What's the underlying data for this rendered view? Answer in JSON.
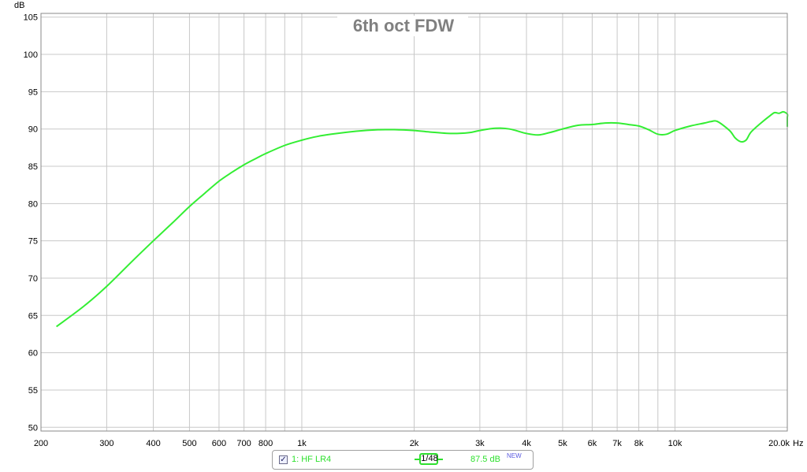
{
  "chart_data": {
    "type": "line",
    "title": "6th oct FDW",
    "y_unit": "dB",
    "x_unit": "Hz",
    "x_scale": "log",
    "xlim": [
      200,
      20000
    ],
    "ylim": [
      49.5,
      105.5
    ],
    "grid": true,
    "y_ticks": [
      50,
      55,
      60,
      65,
      70,
      75,
      80,
      85,
      90,
      95,
      100,
      105
    ],
    "x_ticks": [
      {
        "value": 200,
        "label": "200"
      },
      {
        "value": 300,
        "label": "300"
      },
      {
        "value": 400,
        "label": "400"
      },
      {
        "value": 500,
        "label": "500"
      },
      {
        "value": 600,
        "label": "600"
      },
      {
        "value": 700,
        "label": "700"
      },
      {
        "value": 800,
        "label": "800"
      },
      {
        "value": 1000,
        "label": "1k"
      },
      {
        "value": 2000,
        "label": "2k"
      },
      {
        "value": 3000,
        "label": "3k"
      },
      {
        "value": 4000,
        "label": "4k"
      },
      {
        "value": 5000,
        "label": "5k"
      },
      {
        "value": 6000,
        "label": "6k"
      },
      {
        "value": 7000,
        "label": "7k"
      },
      {
        "value": 8000,
        "label": "8k"
      },
      {
        "value": 10000,
        "label": "10k"
      },
      {
        "value": 20000,
        "label": "20.0k"
      }
    ],
    "x_minor_grid": [
      900,
      9000
    ],
    "series": [
      {
        "name": "1: HF LR4",
        "color": "#33ee33",
        "x": [
          220,
          260,
          300,
          350,
          400,
          450,
          500,
          550,
          600,
          650,
          700,
          750,
          800,
          900,
          1000,
          1100,
          1200,
          1400,
          1600,
          1800,
          2000,
          2200,
          2500,
          2800,
          3000,
          3300,
          3600,
          4000,
          4300,
          4600,
          5000,
          5500,
          6000,
          6500,
          7000,
          7500,
          8000,
          8500,
          9000,
          9500,
          10000,
          11000,
          12000,
          12500,
          13000,
          14000,
          14500,
          15000,
          15500,
          16000,
          17000,
          18000,
          18500,
          19000,
          19500,
          20000,
          20500,
          21000
        ],
        "values": [
          63.5,
          66.2,
          68.9,
          72.2,
          75.0,
          77.4,
          79.6,
          81.4,
          83.0,
          84.2,
          85.2,
          86.0,
          86.7,
          87.8,
          88.5,
          89.0,
          89.3,
          89.7,
          89.9,
          89.9,
          89.8,
          89.6,
          89.4,
          89.5,
          89.8,
          90.1,
          90.0,
          89.4,
          89.2,
          89.5,
          90.0,
          90.5,
          90.6,
          90.8,
          90.8,
          90.6,
          90.4,
          89.9,
          89.3,
          89.3,
          89.8,
          90.4,
          90.8,
          91.0,
          91.0,
          89.8,
          88.8,
          88.3,
          88.5,
          89.6,
          90.8,
          91.8,
          92.2,
          92.1,
          92.3,
          92.0,
          91.5,
          90.3
        ]
      }
    ]
  },
  "legend": {
    "checkbox_checked": true,
    "checkbox_glyph": "✓",
    "series_label": "1: HF LR4",
    "smoothing_label": "1/48",
    "level_label": "87.5 dB",
    "new_badge": "NEW"
  }
}
